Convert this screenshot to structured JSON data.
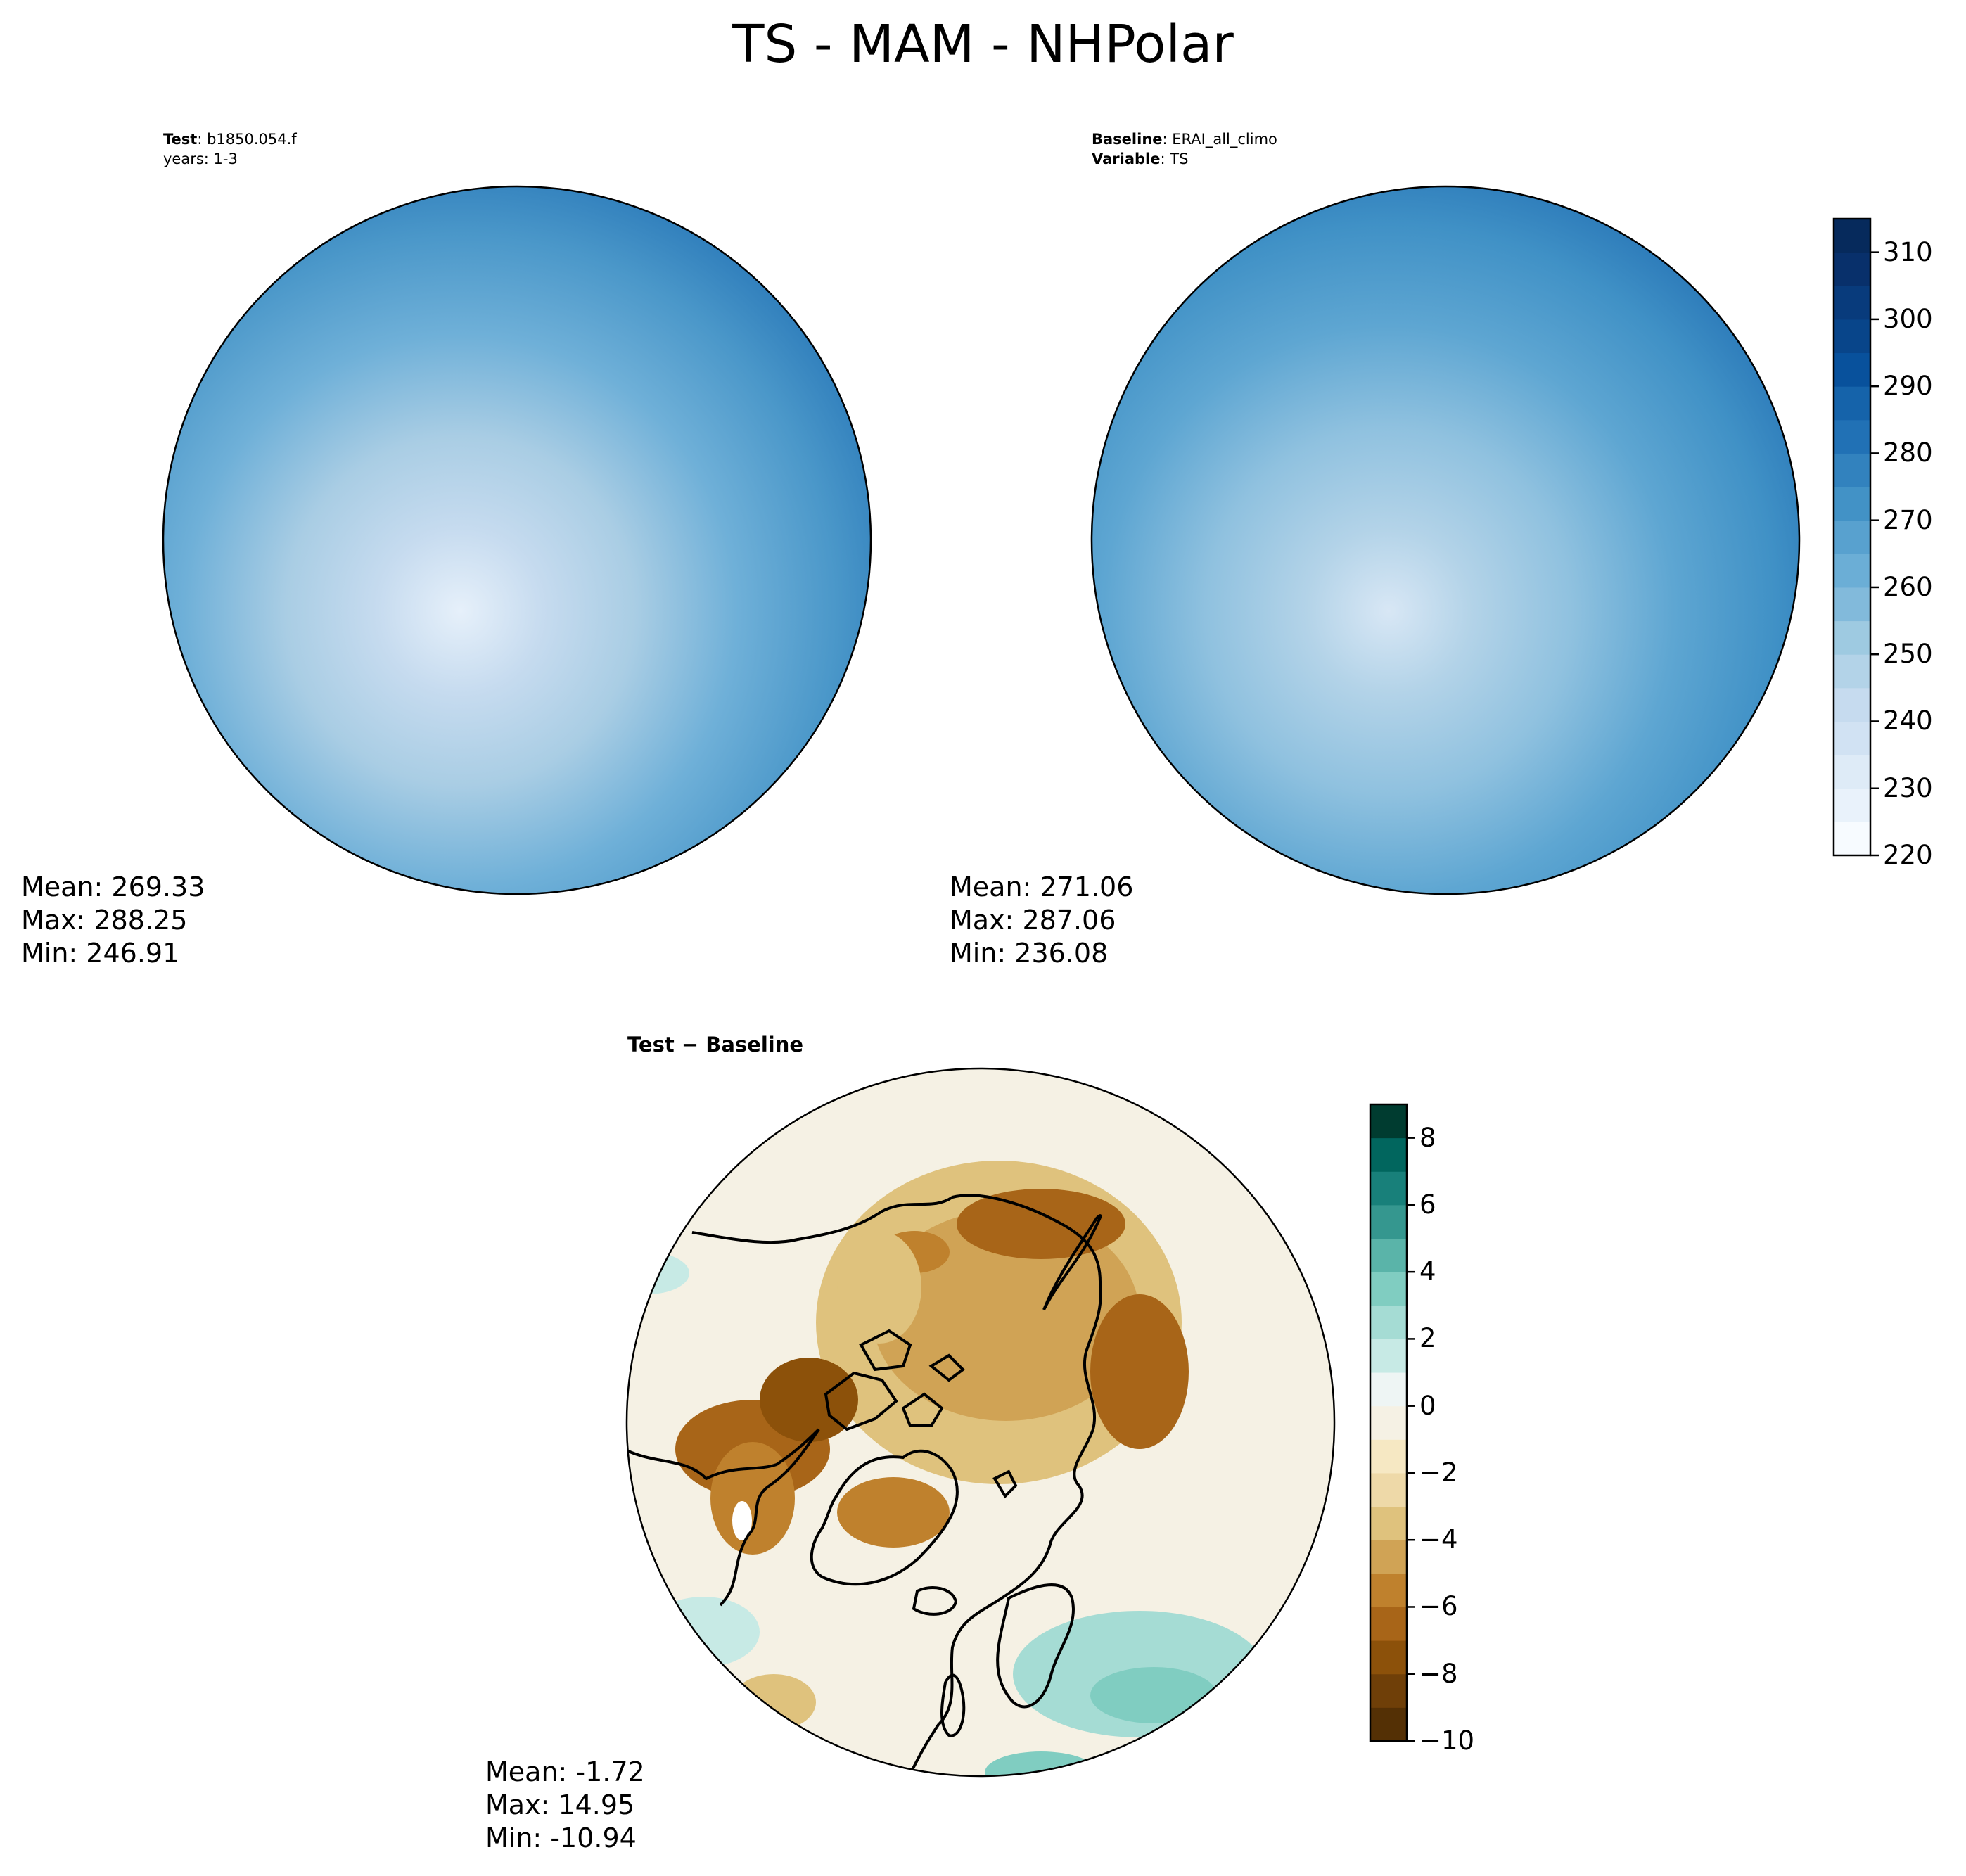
{
  "figure": {
    "title": "TS - MAM - NHPolar"
  },
  "panels": {
    "test": {
      "label_key": "Test",
      "label_value": "b1850.054.f",
      "label_line2": "years: 1-3",
      "stats": {
        "mean": "Mean: 269.33",
        "max": "Max: 288.25",
        "min": "Min: 246.91"
      }
    },
    "baseline": {
      "label_key": "Baseline",
      "label_value": "ERAI_all_climo",
      "label_key2": "Variable",
      "label_value2": "TS",
      "stats": {
        "mean": "Mean: 271.06",
        "max": "Max: 287.06",
        "min": "Min: 236.08"
      }
    },
    "diff": {
      "label": "Test − Baseline",
      "stats": {
        "mean": "Mean: -1.72",
        "max": "Max: 14.95",
        "min": "Min: -10.94"
      }
    }
  },
  "colorbars": {
    "absolute": {
      "ticks": [
        "220",
        "230",
        "240",
        "250",
        "260",
        "270",
        "280",
        "290",
        "300",
        "310"
      ],
      "range": [
        220,
        315
      ],
      "level_step": 5,
      "colormap": "Blues",
      "colors": [
        "#f7fbff",
        "#e9f2fb",
        "#deebf7",
        "#d1e2f3",
        "#c6dbef",
        "#b3d3e8",
        "#9ecae1",
        "#82badb",
        "#6baed6",
        "#58a1cf",
        "#4292c6",
        "#3282be",
        "#2171b5",
        "#1563aa",
        "#08519c",
        "#08458a",
        "#083b7c",
        "#08306b",
        "#062a5c"
      ]
    },
    "difference": {
      "ticks": [
        "−10",
        "−8",
        "−6",
        "−4",
        "−2",
        "0",
        "2",
        "4",
        "6",
        "8"
      ],
      "range": [
        -10,
        9
      ],
      "level_step": 1,
      "colormap": "BrBG",
      "colors": [
        "#543005",
        "#6f3f08",
        "#8c510a",
        "#a86518",
        "#bf812d",
        "#d0a355",
        "#dfc27d",
        "#eed9a8",
        "#f6e8c3",
        "#f5f1e4",
        "#eef5f4",
        "#c7eae5",
        "#a5dcd4",
        "#80cdc1",
        "#5ab4a9",
        "#35978f",
        "#18807a",
        "#01665e",
        "#003c30"
      ]
    }
  }
}
